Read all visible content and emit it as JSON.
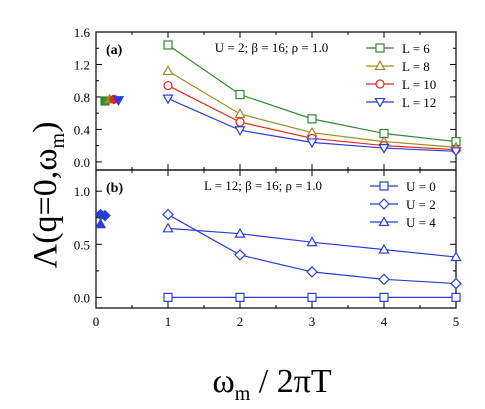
{
  "chart_data": [
    {
      "type": "scatter",
      "panel_label": "(a)",
      "annotation": "U = 2;  β = 16; ρ = 1.0",
      "xlim": [
        0,
        5
      ],
      "ylim": [
        -0.1,
        1.6
      ],
      "yticks": [
        "0.0",
        "0.4",
        "0.8",
        "1.2",
        "1.6"
      ],
      "ytick_values": [
        0.0,
        0.4,
        0.8,
        1.2,
        1.6
      ],
      "legend_position": "top-right",
      "series": [
        {
          "name": "L = 6",
          "marker": "square",
          "color": "#2e8b2e",
          "x": [
            1,
            2,
            3,
            4,
            5
          ],
          "y": [
            1.44,
            0.83,
            0.53,
            0.35,
            0.25
          ],
          "filled_x": [
            0.125
          ],
          "filled_y": [
            0.75
          ]
        },
        {
          "name": "L = 8",
          "marker": "triangle-up",
          "color": "#a08a20",
          "x": [
            1,
            2,
            3,
            4,
            5
          ],
          "y": [
            1.12,
            0.59,
            0.36,
            0.25,
            0.18
          ],
          "filled_x": [
            0.1875
          ],
          "filled_y": [
            0.77
          ]
        },
        {
          "name": "L = 10",
          "marker": "circle",
          "color": "#e0281e",
          "x": [
            1,
            2,
            3,
            4,
            5
          ],
          "y": [
            0.94,
            0.49,
            0.29,
            0.2,
            0.15
          ],
          "filled_x": [
            0.25
          ],
          "filled_y": [
            0.77
          ]
        },
        {
          "name": "L = 12",
          "marker": "triangle-down",
          "color": "#2a3fd6",
          "x": [
            1,
            2,
            3,
            4,
            5
          ],
          "y": [
            0.78,
            0.39,
            0.24,
            0.17,
            0.13
          ],
          "filled_x": [
            0.3125
          ],
          "filled_y": [
            0.76
          ]
        }
      ]
    },
    {
      "type": "scatter",
      "panel_label": "(b)",
      "annotation": "L = 12; β = 16; ρ = 1.0",
      "xlim": [
        0,
        5
      ],
      "ylim": [
        -0.1,
        1.2
      ],
      "yticks": [
        "0.0",
        "0.5",
        "1.0"
      ],
      "ytick_values": [
        0.0,
        0.5,
        1.0
      ],
      "xticks": [
        "0",
        "1",
        "2",
        "3",
        "4",
        "5"
      ],
      "xtick_values": [
        0,
        1,
        2,
        3,
        4,
        5
      ],
      "legend_position": "top-right",
      "series": [
        {
          "name": "U = 0",
          "marker": "square",
          "color": "#2a3fd6",
          "x": [
            1,
            2,
            3,
            4,
            5
          ],
          "y": [
            0.0,
            0.0,
            0.0,
            0.0,
            0.0
          ],
          "filled_x": [],
          "filled_y": []
        },
        {
          "name": "U = 2",
          "marker": "diamond",
          "color": "#2a3fd6",
          "x": [
            1,
            2,
            3,
            4,
            5
          ],
          "y": [
            0.78,
            0.4,
            0.24,
            0.17,
            0.13
          ],
          "filled_x": [
            0.0625,
            0.125
          ],
          "filled_y": [
            0.78,
            0.77
          ]
        },
        {
          "name": "U = 4",
          "marker": "triangle-up",
          "color": "#2a3fd6",
          "x": [
            1,
            2,
            3,
            4,
            5
          ],
          "y": [
            0.65,
            0.6,
            0.52,
            0.45,
            0.38
          ],
          "filled_x": [
            0.0625
          ],
          "filled_y": [
            0.69
          ]
        }
      ]
    }
  ],
  "axes": {
    "ylabel": "Λ(q=0,ω",
    "ylabel_sub": "m",
    "ylabel_close": ")",
    "xlabel": "ω",
    "xlabel_sub": "m",
    "xlabel_rest": " / 2πT"
  }
}
